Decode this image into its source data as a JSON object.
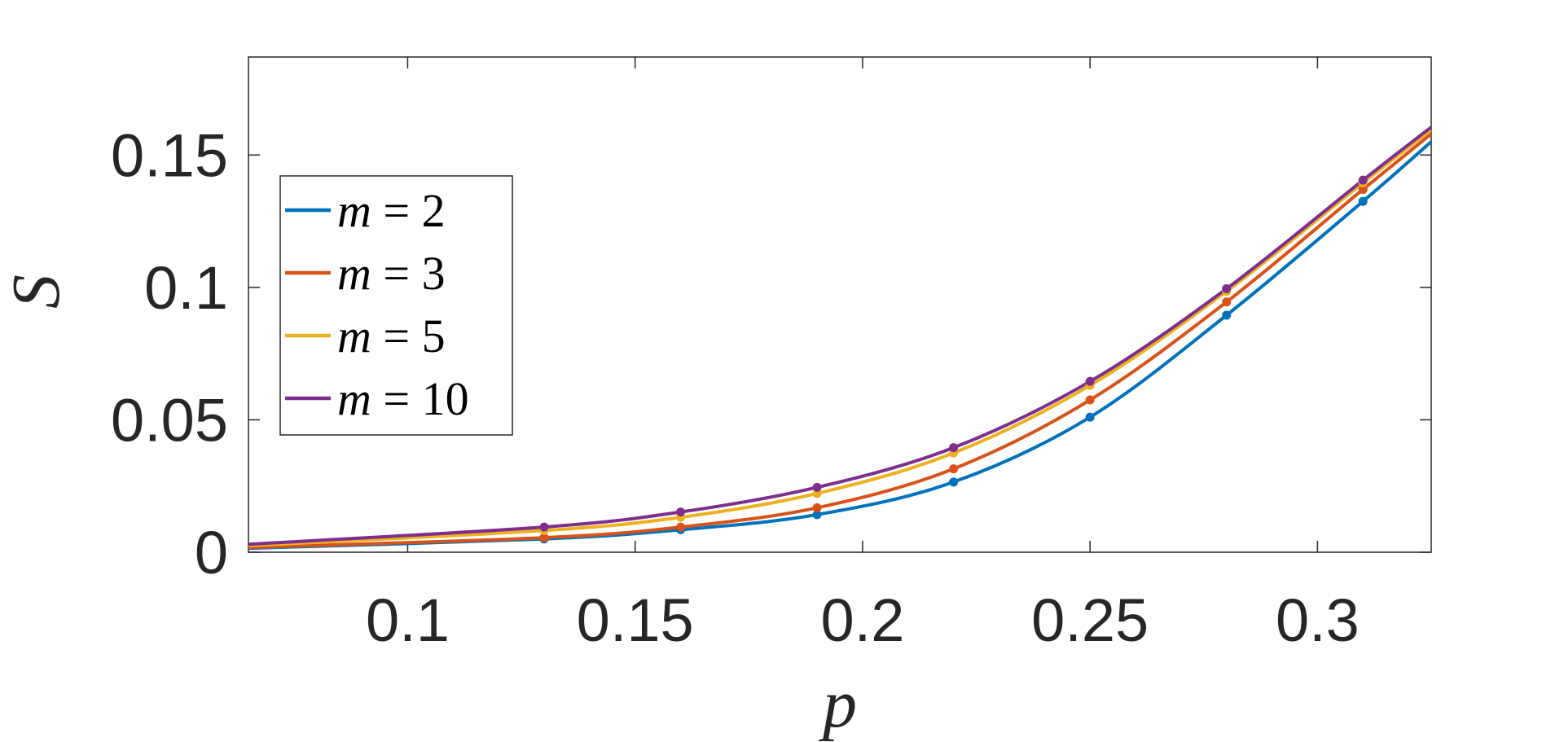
{
  "chart_data": {
    "type": "line",
    "xlabel": "p",
    "ylabel": "S",
    "xlim": [
      0.065,
      0.325
    ],
    "ylim": [
      0,
      0.187
    ],
    "xticks": [
      0.1,
      0.15,
      0.2,
      0.25,
      0.3
    ],
    "xtick_labels": [
      "0.1",
      "0.15",
      "0.2",
      "0.25",
      "0.3"
    ],
    "yticks": [
      0,
      0.05,
      0.1,
      0.15
    ],
    "ytick_labels": [
      "0",
      "0.05",
      "0.1",
      "0.15"
    ],
    "grid": false,
    "legend_position": "upper-left",
    "x": [
      0.065,
      0.13,
      0.16,
      0.19,
      0.22,
      0.25,
      0.28,
      0.31,
      0.325
    ],
    "marker_x": [
      0.13,
      0.16,
      0.19,
      0.22,
      0.25,
      0.28,
      0.31
    ],
    "series": [
      {
        "name": "m = 2",
        "var": "m",
        "value": "2",
        "color": "#0072BD",
        "values": [
          0.0015,
          0.005,
          0.0085,
          0.0142,
          0.0265,
          0.051,
          0.0895,
          0.1325,
          0.155
        ]
      },
      {
        "name": "m = 3",
        "var": "m",
        "value": "3",
        "color": "#D95319",
        "values": [
          0.0018,
          0.0055,
          0.0095,
          0.0168,
          0.0315,
          0.0575,
          0.0945,
          0.137,
          0.158
        ]
      },
      {
        "name": "m = 5",
        "var": "m",
        "value": "5",
        "color": "#EDB120",
        "values": [
          0.0025,
          0.0082,
          0.0132,
          0.0222,
          0.0375,
          0.063,
          0.0985,
          0.1395,
          0.1595
        ]
      },
      {
        "name": "m = 10",
        "var": "m",
        "value": "10",
        "color": "#7E2F8E",
        "values": [
          0.003,
          0.0095,
          0.0152,
          0.0245,
          0.0395,
          0.0645,
          0.0995,
          0.1405,
          0.1605
        ]
      }
    ]
  }
}
